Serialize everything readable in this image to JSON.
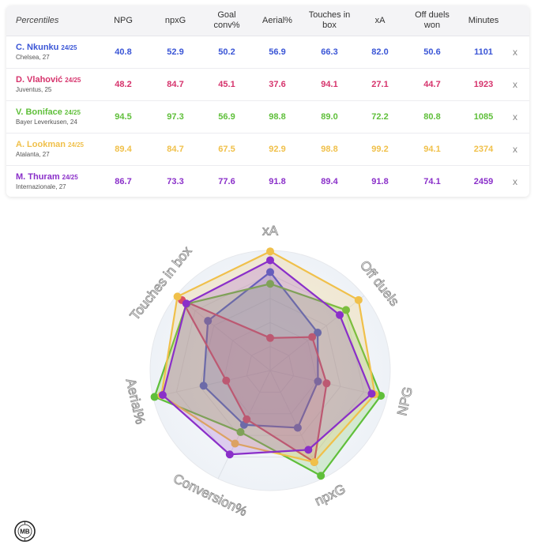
{
  "table": {
    "header": {
      "first": "Percentiles",
      "columns": [
        "NPG",
        "npxG",
        "Goal conv%",
        "Aerial%",
        "Touches in box",
        "xA",
        "Off duels won",
        "Minutes"
      ]
    },
    "remove_label": "x",
    "rows": [
      {
        "name": "C. Nkunku",
        "season": "24/25",
        "team": "Chelsea, 27",
        "color": "#3a55d6",
        "values": [
          "40.8",
          "52.9",
          "50.2",
          "56.9",
          "66.3",
          "82.0",
          "50.6",
          "1101"
        ]
      },
      {
        "name": "D. Vlahović",
        "season": "24/25",
        "team": "Juventus, 25",
        "color": "#d6336c",
        "values": [
          "48.2",
          "84.7",
          "45.1",
          "37.6",
          "94.1",
          "27.1",
          "44.7",
          "1923"
        ]
      },
      {
        "name": "V. Boniface",
        "season": "24/25",
        "team": "Bayer Leverkusen, 24",
        "color": "#5fbf3a",
        "values": [
          "94.5",
          "97.3",
          "56.9",
          "98.8",
          "89.0",
          "72.2",
          "80.8",
          "1085"
        ]
      },
      {
        "name": "A. Lookman",
        "season": "24/25",
        "team": "Atalanta, 27",
        "color": "#f0c04a",
        "values": [
          "89.4",
          "84.7",
          "67.5",
          "92.9",
          "98.8",
          "99.2",
          "94.1",
          "2374"
        ]
      },
      {
        "name": "M. Thuram",
        "season": "24/25",
        "team": "Internazionale, 27",
        "color": "#8a2fc9",
        "values": [
          "86.7",
          "73.3",
          "77.6",
          "91.8",
          "89.4",
          "91.8",
          "74.1",
          "2459"
        ]
      }
    ]
  },
  "logo_text": "MB",
  "chart_data": {
    "type": "radar",
    "axes": [
      "xA",
      "Off duels",
      "NPG",
      "npxG",
      "Conversion%",
      "Aerial%",
      "Touches in box"
    ],
    "range": [
      0,
      100
    ],
    "series": [
      {
        "name": "C. Nkunku",
        "color": "#3a55d6",
        "values": [
          82.0,
          50.6,
          40.8,
          52.9,
          50.2,
          56.9,
          66.3
        ]
      },
      {
        "name": "D. Vlahović",
        "color": "#d6336c",
        "values": [
          27.1,
          44.7,
          48.2,
          84.7,
          45.1,
          37.6,
          94.1
        ]
      },
      {
        "name": "V. Boniface",
        "color": "#5fbf3a",
        "values": [
          72.2,
          80.8,
          94.5,
          97.3,
          56.9,
          98.8,
          89.0
        ]
      },
      {
        "name": "A. Lookman",
        "color": "#f0c04a",
        "values": [
          99.2,
          94.1,
          89.4,
          84.7,
          67.5,
          92.9,
          98.8
        ]
      },
      {
        "name": "M. Thuram",
        "color": "#8a2fc9",
        "values": [
          91.8,
          74.1,
          86.7,
          73.3,
          77.6,
          91.8,
          89.4
        ]
      }
    ]
  }
}
